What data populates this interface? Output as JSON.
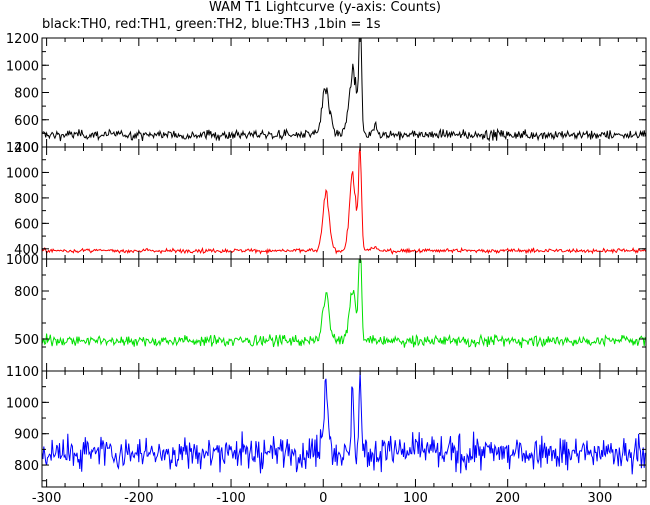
{
  "title": "WAM T1 Lightcurve (y-axis: Counts)",
  "subtitle": "black:TH0, red:TH1, green:TH2, blue:TH3 ,1bin = 1s",
  "chart_data": {
    "type": "line",
    "xlabel": "",
    "xlim": [
      -305,
      350
    ],
    "xticks": [
      -300,
      -200,
      -100,
      0,
      100,
      200,
      300
    ],
    "panels": [
      {
        "channel": "TH0",
        "color": "#000000",
        "ylim": [
          400,
          1200
        ],
        "yticks": [
          400,
          600,
          800,
          1000,
          1200
        ],
        "baseline": 490,
        "noise": 25,
        "peaks": [
          {
            "t": 3,
            "height": 330,
            "width": 4
          },
          {
            "t": 32,
            "height": 460,
            "width": 4
          },
          {
            "t": 40,
            "height": 760,
            "width": 1.5
          },
          {
            "t": 55,
            "height": 60,
            "width": 3
          }
        ]
      },
      {
        "channel": "TH1",
        "color": "#ff0000",
        "ylim": [
          320,
          1200
        ],
        "yticks": [
          400,
          600,
          800,
          1000,
          1200
        ],
        "baseline": 385,
        "noise": 12,
        "peaks": [
          {
            "t": 3,
            "height": 420,
            "width": 3.5
          },
          {
            "t": 32,
            "height": 560,
            "width": 3.5
          },
          {
            "t": 40,
            "height": 820,
            "width": 1.5
          },
          {
            "t": 55,
            "height": 30,
            "width": 3
          }
        ]
      },
      {
        "channel": "TH2",
        "color": "#00e000",
        "ylim": [
          300,
          1000
        ],
        "yticks": [
          500,
          800,
          1000
        ],
        "baseline": 490,
        "noise": 25,
        "peaks": [
          {
            "t": 3,
            "height": 270,
            "width": 3.5
          },
          {
            "t": 32,
            "height": 320,
            "width": 3.5
          },
          {
            "t": 40,
            "height": 560,
            "width": 1.5
          }
        ]
      },
      {
        "channel": "TH3",
        "color": "#0000ff",
        "ylim": [
          730,
          1100
        ],
        "yticks": [
          800,
          900,
          1000,
          1100
        ],
        "baseline": 840,
        "noise": 38,
        "peaks": [
          {
            "t": 3,
            "height": 210,
            "width": 3
          },
          {
            "t": 32,
            "height": 230,
            "width": 1.2
          },
          {
            "t": 40,
            "height": 320,
            "width": 1
          }
        ]
      }
    ],
    "grid": false
  }
}
